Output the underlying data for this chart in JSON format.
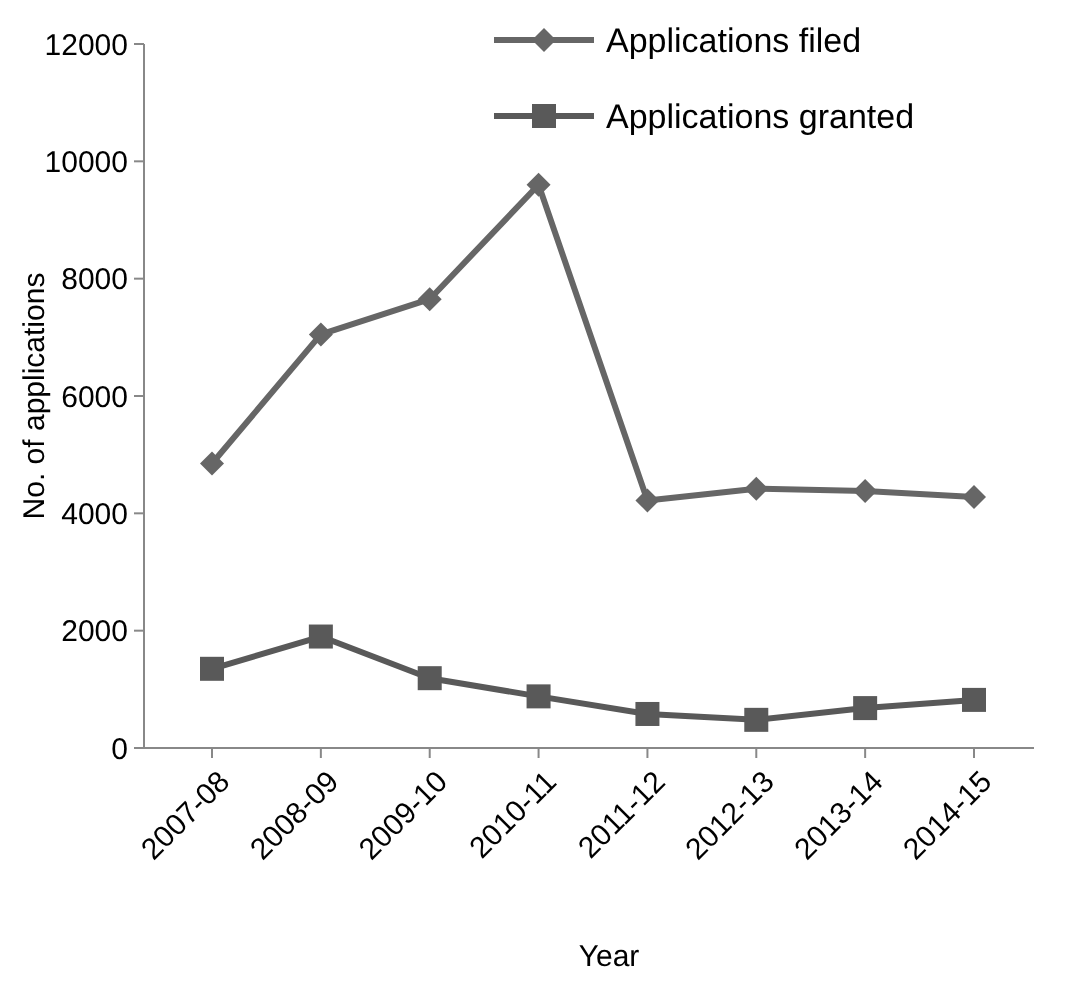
{
  "chart_data": {
    "type": "line",
    "xlabel": "Year",
    "ylabel": "No. of applications",
    "categories": [
      "2007-08",
      "2008-09",
      "2009-10",
      "2010-11",
      "2011-12",
      "2012-13",
      "2013-14",
      "2014-15"
    ],
    "series": [
      {
        "name": "Applications filed",
        "color": "#666666",
        "marker": "diamond",
        "values": [
          4850,
          7050,
          7650,
          9600,
          4220,
          4420,
          4380,
          4280
        ]
      },
      {
        "name": "Applications granted",
        "color": "#595959",
        "marker": "square",
        "values": [
          1350,
          1900,
          1190,
          880,
          580,
          480,
          680,
          820
        ]
      }
    ],
    "ylim": [
      0,
      12000
    ],
    "yticks": [
      0,
      2000,
      4000,
      6000,
      8000,
      10000,
      12000
    ],
    "grid": false,
    "legend": "top right"
  }
}
